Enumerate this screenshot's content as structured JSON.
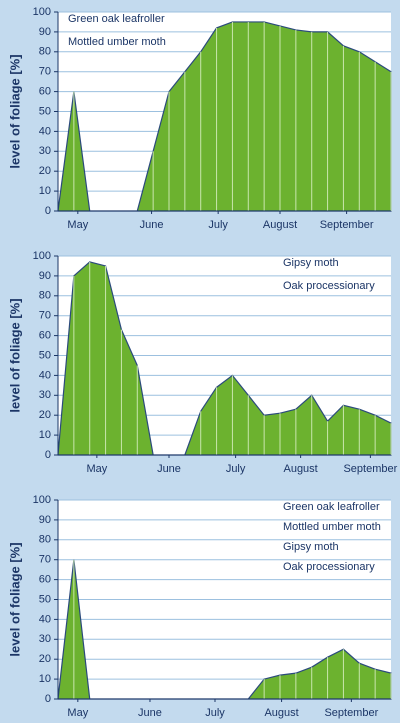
{
  "chart_data": [
    {
      "type": "area",
      "ylabel": "level of foliage [%]",
      "legend": [
        "Green oak leafroller",
        "Mottled umber moth"
      ],
      "legend_position": "top-left",
      "x": [
        0,
        1,
        2,
        3,
        4,
        5,
        6,
        7,
        8,
        9,
        10,
        11,
        12,
        13,
        14,
        15,
        16,
        17,
        18,
        19,
        20,
        21
      ],
      "values": [
        0,
        60,
        0,
        0,
        0,
        0,
        30,
        60,
        70,
        80,
        92,
        95,
        95,
        95,
        93,
        91,
        90,
        90,
        83,
        80,
        75,
        70
      ],
      "xlim": [
        0,
        21
      ],
      "ylim": [
        0,
        100
      ],
      "yticks": [
        0,
        10,
        20,
        30,
        40,
        50,
        60,
        70,
        80,
        90,
        100
      ],
      "xticks": [
        {
          "value": 1.25,
          "label": "May"
        },
        {
          "value": 5.9,
          "label": "June"
        },
        {
          "value": 10.1,
          "label": "July"
        },
        {
          "value": 14.0,
          "label": "August"
        },
        {
          "value": 18.2,
          "label": "September"
        }
      ],
      "color": "#6cb22f",
      "grid": true
    },
    {
      "type": "area",
      "ylabel": "level of foliage [%]",
      "legend": [
        "Gipsy moth",
        "Oak processionary"
      ],
      "legend_position": "top-right",
      "x": [
        0,
        1,
        2,
        3,
        4,
        5,
        6,
        7,
        8,
        9,
        10,
        11,
        12,
        13,
        14,
        15,
        16,
        17,
        18,
        19,
        20,
        21
      ],
      "values": [
        0,
        90,
        97,
        95,
        63,
        45,
        0,
        0,
        0,
        22,
        34,
        40,
        30,
        20,
        21,
        23,
        30,
        17,
        25,
        23,
        20,
        16
      ],
      "xlim": [
        0,
        21
      ],
      "ylim": [
        0,
        100
      ],
      "yticks": [
        0,
        10,
        20,
        30,
        40,
        50,
        60,
        70,
        80,
        90,
        100
      ],
      "xticks": [
        {
          "value": 2.45,
          "label": "May"
        },
        {
          "value": 7.0,
          "label": "June"
        },
        {
          "value": 11.2,
          "label": "July"
        },
        {
          "value": 15.3,
          "label": "August"
        },
        {
          "value": 19.7,
          "label": "September"
        }
      ],
      "color": "#6cb22f",
      "grid": true
    },
    {
      "type": "area",
      "ylabel": "level of foliage [%]",
      "legend": [
        "Green oak leafroller",
        "Mottled umber moth",
        "Gipsy moth",
        "Oak processionary"
      ],
      "legend_position": "top-right",
      "x": [
        0,
        1,
        2,
        3,
        4,
        5,
        6,
        7,
        8,
        9,
        10,
        11,
        12,
        13,
        14,
        15,
        16,
        17,
        18,
        19,
        20,
        21
      ],
      "values": [
        0,
        70,
        0,
        0,
        0,
        0,
        0,
        0,
        0,
        0,
        0,
        0,
        0,
        10,
        12,
        13,
        16,
        21,
        25,
        18,
        15,
        13
      ],
      "xlim": [
        0,
        21
      ],
      "ylim": [
        0,
        100
      ],
      "yticks": [
        0,
        10,
        20,
        30,
        40,
        50,
        60,
        70,
        80,
        90,
        100
      ],
      "xticks": [
        {
          "value": 1.25,
          "label": "May"
        },
        {
          "value": 5.8,
          "label": "June"
        },
        {
          "value": 9.9,
          "label": "July"
        },
        {
          "value": 14.1,
          "label": "August"
        },
        {
          "value": 18.5,
          "label": "September"
        }
      ],
      "color": "#6cb22f",
      "grid": true
    }
  ]
}
